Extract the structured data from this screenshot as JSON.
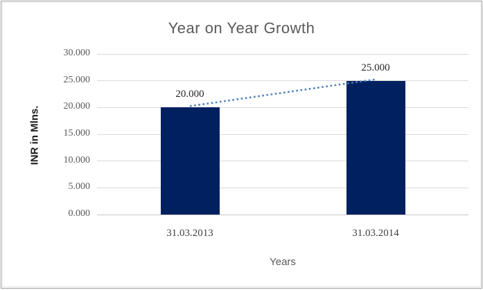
{
  "chart_data": {
    "type": "bar",
    "title": "Year on Year Growth",
    "xlabel": "Years",
    "ylabel": "INR in Mlns.",
    "categories": [
      "31.03.2013",
      "31.03.2014"
    ],
    "values": [
      20,
      25
    ],
    "data_labels": [
      "20.000",
      "25.000"
    ],
    "ylim": [
      0,
      30
    ],
    "ytick_step": 5,
    "ytick_labels": [
      "0.000",
      "5.000",
      "10.000",
      "15.000",
      "20.000",
      "25.000",
      "30.000"
    ],
    "grid": true,
    "legend": "none",
    "trendline": {
      "style": "dotted",
      "connects": "bar tops",
      "color": "#4F81BD"
    },
    "colors": {
      "bar": "#002060",
      "gridline": "#D9D9D9",
      "axis_line": "#C6C6C6",
      "title_text": "#595959",
      "ytick_text": "#595959",
      "xtick_text": "#404040",
      "data_label_text": "#262626",
      "ylabel_text": "#1a1a1a",
      "xlabel_text": "#595959"
    }
  }
}
